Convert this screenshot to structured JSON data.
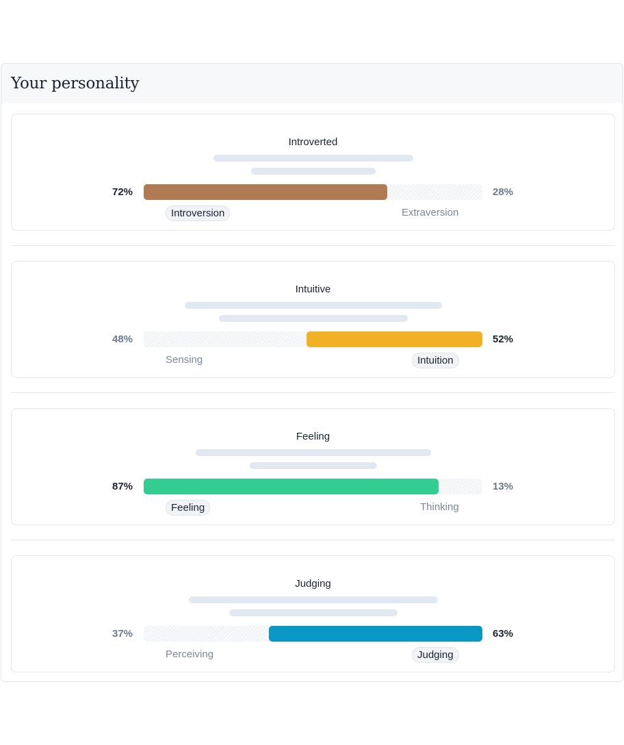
{
  "header": {
    "title": "Your personality"
  },
  "traits": [
    {
      "title": "Introverted",
      "left_pct": "72%",
      "right_pct": "28%",
      "left_label": "Introversion",
      "right_label": "Extraversion",
      "dominant": "left",
      "value": 0.72,
      "color": "#b07a55"
    },
    {
      "title": "Intuitive",
      "left_pct": "48%",
      "right_pct": "52%",
      "left_label": "Sensing",
      "right_label": "Intuition",
      "dominant": "right",
      "value": 0.52,
      "color": "#f2b124"
    },
    {
      "title": "Feeling",
      "left_pct": "87%",
      "right_pct": "13%",
      "left_label": "Feeling",
      "right_label": "Thinking",
      "dominant": "left",
      "value": 0.87,
      "color": "#33cc91"
    },
    {
      "title": "Judging",
      "left_pct": "37%",
      "right_pct": "63%",
      "left_label": "Perceiving",
      "right_label": "Judging",
      "dominant": "right",
      "value": 0.63,
      "color": "#0a97c4"
    }
  ]
}
